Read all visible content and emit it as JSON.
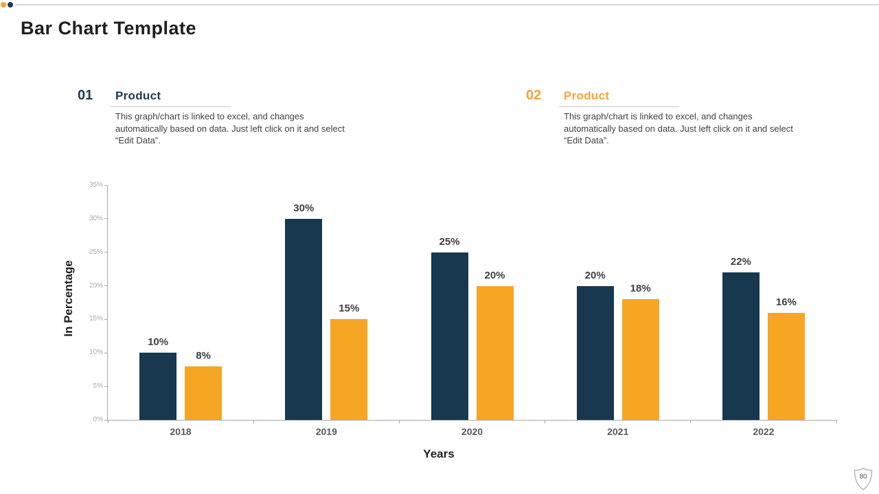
{
  "slide": {
    "title": "Bar Chart Template",
    "page_number": "80"
  },
  "sections": [
    {
      "number": "01",
      "heading": "Product",
      "description": "This graph/chart is linked to excel, and changes automatically based on data. Just left click on it and select “Edit Data”.",
      "accent_color": "#1B3A52"
    },
    {
      "number": "02",
      "heading": "Product",
      "description": "This graph/chart is linked to excel, and changes automatically based on data. Just left click on it and select “Edit Data”.",
      "accent_color": "#F2A33C"
    }
  ],
  "chart_data": {
    "type": "bar",
    "categories": [
      "2018",
      "2019",
      "2020",
      "2021",
      "2022"
    ],
    "series": [
      {
        "name": "Product 01",
        "color": "#17384E",
        "values": [
          10,
          30,
          25,
          20,
          22
        ]
      },
      {
        "name": "Product 02",
        "color": "#F6A623",
        "values": [
          8,
          15,
          20,
          18,
          16
        ]
      }
    ],
    "value_suffix": "%",
    "title": "",
    "xlabel": "Years",
    "ylabel": "In Percentage",
    "ylim": [
      0,
      35
    ],
    "ytick_step": 5,
    "ytick_suffix": "%",
    "grid": false,
    "legend": "none",
    "data_labels": true
  },
  "decorations": {
    "dot_colors": [
      "#F2A33C",
      "#1B3A52"
    ],
    "top_line_color": "#d9d9d9",
    "shield_icon": "shield-icon"
  }
}
